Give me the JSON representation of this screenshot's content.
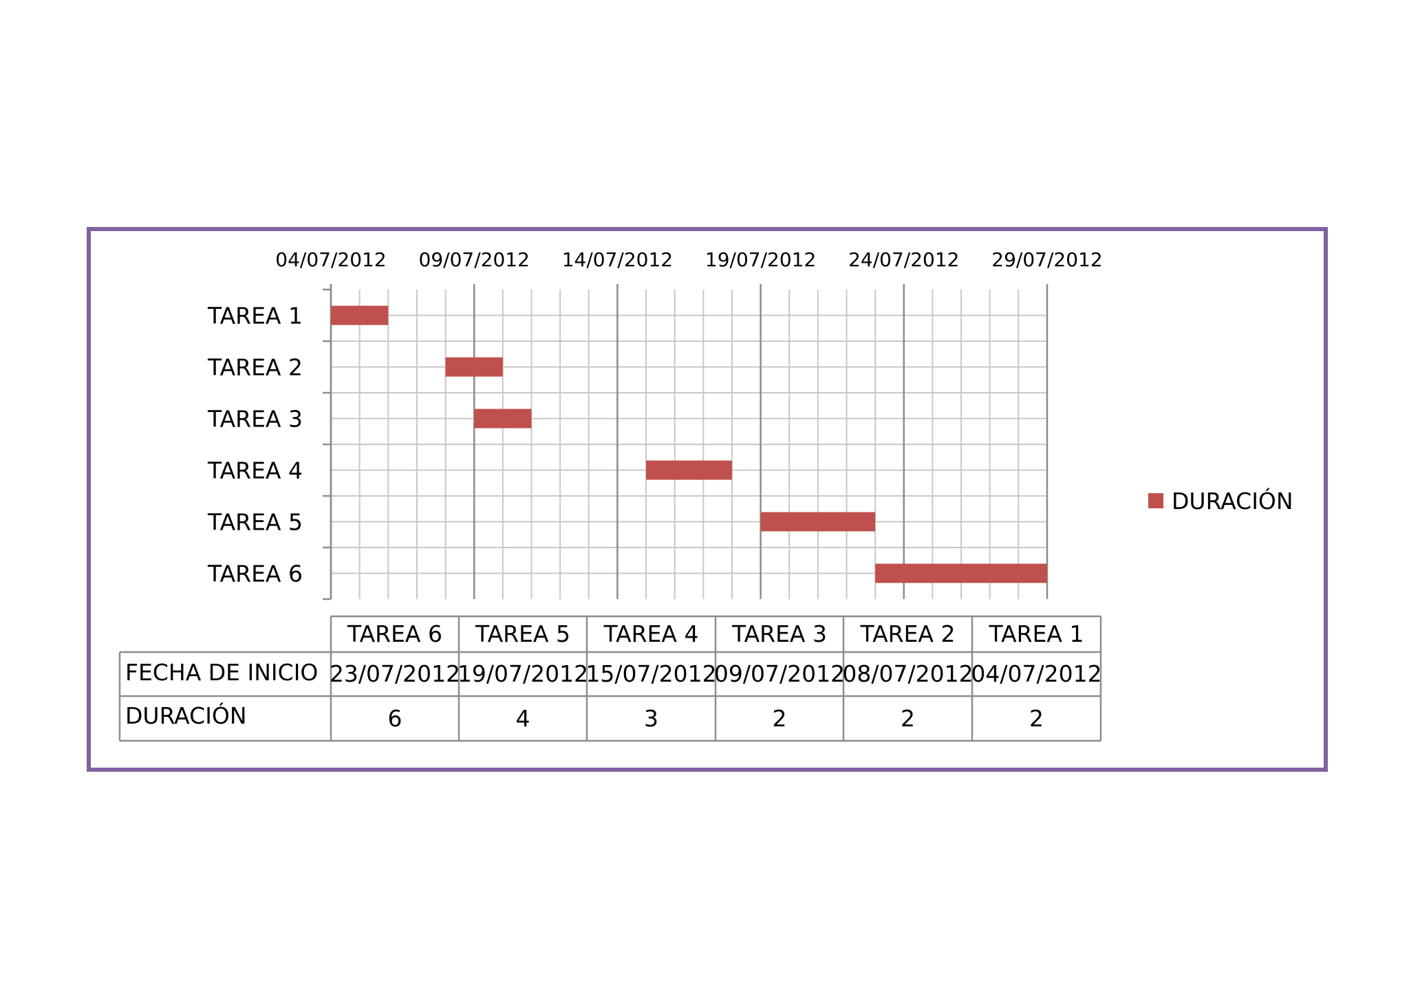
{
  "chart_data": {
    "type": "bar",
    "orientation": "horizontal",
    "title": "",
    "xlabel": "",
    "ylabel": "",
    "categories": [
      "TAREA 1",
      "TAREA 2",
      "TAREA 3",
      "TAREA 4",
      "TAREA 5",
      "TAREA 6"
    ],
    "x_ticks": [
      "04/07/2012",
      "09/07/2012",
      "14/07/2012",
      "19/07/2012",
      "24/07/2012",
      "29/07/2012"
    ],
    "xlim": [
      "04/07/2012",
      "29/07/2012"
    ],
    "grid": true,
    "legend": {
      "position": "right",
      "entries": [
        "DURACIÓN"
      ]
    },
    "series": [
      {
        "name": "DURACIÓN",
        "color": "#c0504d",
        "start": [
          "04/07/2012",
          "08/07/2012",
          "09/07/2012",
          "15/07/2012",
          "19/07/2012",
          "23/07/2012"
        ],
        "values": [
          2,
          2,
          2,
          3,
          4,
          6
        ]
      }
    ],
    "data_table": {
      "columns": [
        "TAREA 6",
        "TAREA 5",
        "TAREA 4",
        "TAREA 3",
        "TAREA 2",
        "TAREA 1"
      ],
      "rows": [
        {
          "label": "FECHA DE INICIO",
          "cells": [
            "23/07/2012",
            "19/07/2012",
            "15/07/2012",
            "09/07/2012",
            "08/07/2012",
            "04/07/2012"
          ]
        },
        {
          "label": "DURACIÓN",
          "cells": [
            "6",
            "4",
            "3",
            "2",
            "2",
            "2"
          ]
        }
      ]
    }
  }
}
